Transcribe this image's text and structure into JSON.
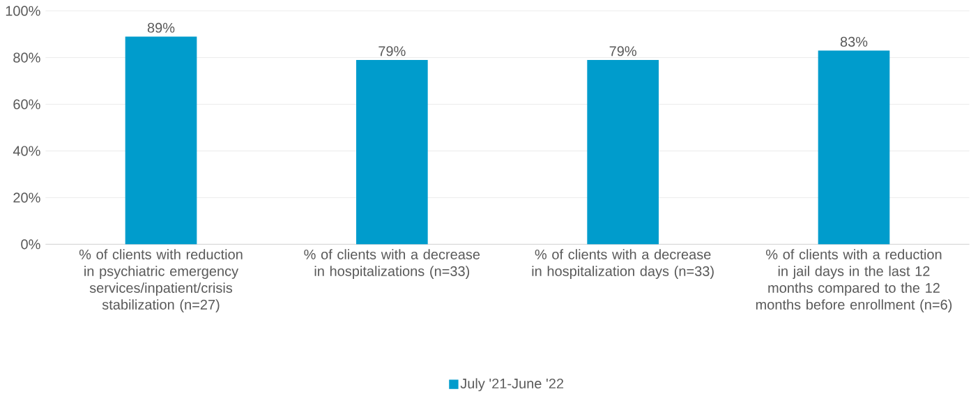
{
  "chart_data": {
    "type": "bar",
    "categories": [
      "% of clients with reduction in psychiatric emergency services/inpatient/crisis stabilization (n=27)",
      "% of clients with a decrease in hospitalizations (n=33)",
      "% of clients with a decrease in hospitalization days (n=33)",
      "% of clients with a reduction in jail days in the last 12 months compared to the 12 months before enrollment (n=6)"
    ],
    "series": [
      {
        "name": "July '21-June '22",
        "color": "#009ccc",
        "values": [
          89,
          79,
          79,
          83
        ],
        "value_labels": [
          "89%",
          "79%",
          "79%",
          "83%"
        ]
      }
    ],
    "ylim": [
      0,
      100
    ],
    "yticks": [
      {
        "value": 0,
        "label": "0%"
      },
      {
        "value": 20,
        "label": "20%"
      },
      {
        "value": 40,
        "label": "40%"
      },
      {
        "value": 60,
        "label": "60%"
      },
      {
        "value": 80,
        "label": "80%"
      },
      {
        "value": 100,
        "label": "100%"
      }
    ],
    "grid": "y",
    "legend": "bottom"
  }
}
